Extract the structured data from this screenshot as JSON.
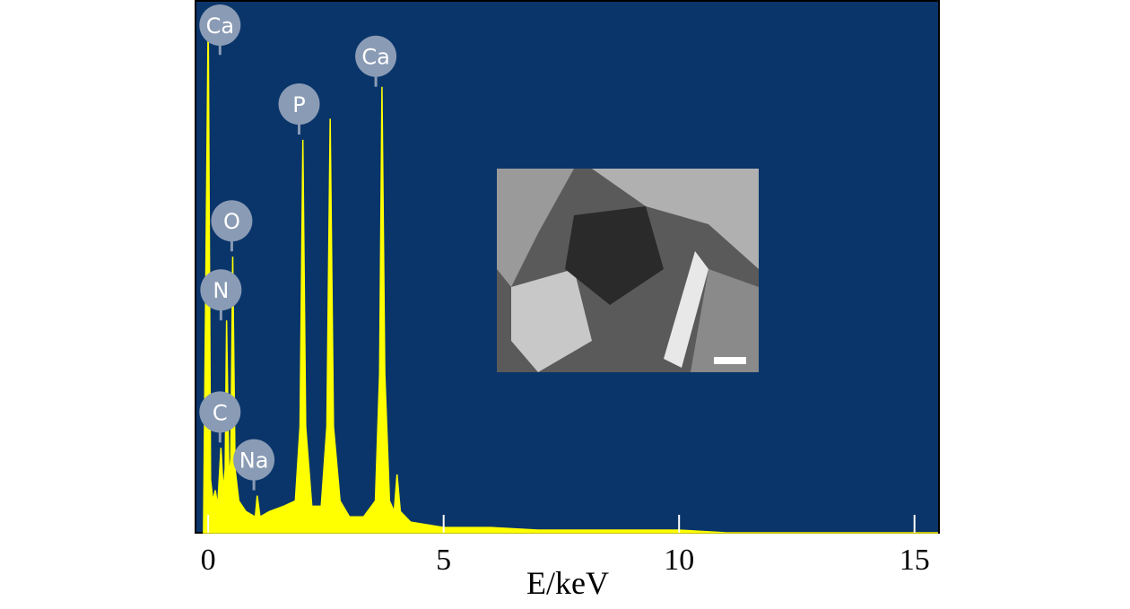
{
  "chart_data": {
    "type": "area",
    "x": [
      -0.1,
      0.0,
      0.05,
      0.1,
      0.15,
      0.2,
      0.27,
      0.32,
      0.36,
      0.39,
      0.44,
      0.48,
      0.52,
      0.57,
      0.65,
      0.8,
      1.0,
      1.04,
      1.1,
      1.3,
      1.6,
      1.85,
      1.95,
      2.01,
      2.07,
      2.2,
      2.4,
      2.52,
      2.59,
      2.66,
      2.8,
      3.0,
      3.3,
      3.55,
      3.64,
      3.69,
      3.75,
      3.85,
      3.95,
      4.01,
      4.08,
      4.3,
      5.0,
      6.0,
      7.0,
      8.0,
      9.0,
      10.0,
      11.0,
      12.0,
      13.0,
      14.0,
      15.0,
      15.5
    ],
    "values": [
      0,
      98,
      10,
      6,
      8,
      5,
      16,
      8,
      12,
      40,
      10,
      14,
      52,
      12,
      6,
      4,
      3,
      7,
      3,
      4,
      5,
      6,
      20,
      74,
      20,
      5,
      5,
      20,
      78,
      20,
      6,
      3,
      3,
      6,
      30,
      84,
      30,
      6,
      4,
      11,
      4,
      2,
      1,
      1,
      0.5,
      0.5,
      0.5,
      0.5,
      0,
      0,
      0,
      0,
      0,
      0
    ],
    "color": "#ffff00",
    "background": "#0a356a",
    "xlim": [
      -0.27,
      15.52
    ],
    "ylim": [
      0,
      100
    ],
    "xticks": [
      0,
      5,
      10,
      15
    ],
    "xlabel": "E/keV",
    "annotations": [
      {
        "text": "Ca",
        "x": 0.25,
        "y": 90
      },
      {
        "text": "P",
        "x": 1.93,
        "y": 75
      },
      {
        "text": "Ca",
        "x": 3.56,
        "y": 84
      },
      {
        "text": "O",
        "x": 0.5,
        "y": 53
      },
      {
        "text": "N",
        "x": 0.27,
        "y": 40
      },
      {
        "text": "C",
        "x": 0.25,
        "y": 17
      },
      {
        "text": "Na",
        "x": 0.97,
        "y": 8
      }
    ]
  }
}
